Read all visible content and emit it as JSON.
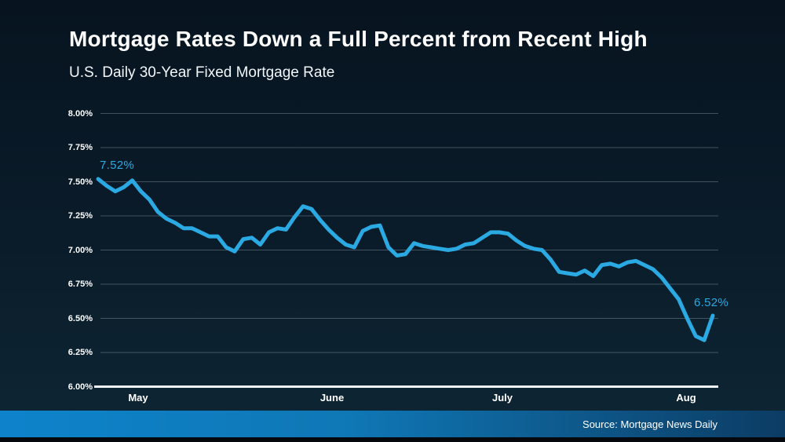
{
  "header": {
    "title": "Mortgage Rates Down a Full Percent from Recent High",
    "subtitle": "U.S. Daily 30-Year Fixed Mortgage Rate"
  },
  "footer": {
    "source": "Source: Mortgage News Daily"
  },
  "colors": {
    "line": "#2aa9e2",
    "annotation": "#2aa9e2",
    "gridline": "rgba(158,173,184,0.38)",
    "baseline": "#eef3f6",
    "footer_left": "#0e83cb",
    "footer_mid": "#0f77b5",
    "footer_right": "#0c3c64"
  },
  "chart_data": {
    "type": "line",
    "title": "Mortgage Rates Down a Full Percent from Recent High",
    "xlabel": "",
    "ylabel": "",
    "unit": "%",
    "ylim": [
      6.0,
      8.0
    ],
    "grid": true,
    "legend": "none",
    "yticks": [
      {
        "label": "8.00%",
        "value": 8.0
      },
      {
        "label": "7.75%",
        "value": 7.75
      },
      {
        "label": "7.50%",
        "value": 7.5
      },
      {
        "label": "7.25%",
        "value": 7.25
      },
      {
        "label": "7.00%",
        "value": 7.0
      },
      {
        "label": "6.75%",
        "value": 6.75
      },
      {
        "label": "6.50%",
        "value": 6.5
      },
      {
        "label": "6.25%",
        "value": 6.25
      },
      {
        "label": "6.00%",
        "value": 6.0
      }
    ],
    "xticks": [
      {
        "label": "May"
      },
      {
        "label": "June"
      },
      {
        "label": "July"
      },
      {
        "label": "Aug"
      }
    ],
    "series": [
      {
        "name": "U.S. Daily 30-Year Fixed Mortgage Rate",
        "values": [
          7.52,
          7.47,
          7.43,
          7.46,
          7.51,
          7.43,
          7.37,
          7.28,
          7.23,
          7.2,
          7.16,
          7.16,
          7.13,
          7.1,
          7.1,
          7.02,
          6.99,
          7.08,
          7.09,
          7.04,
          7.13,
          7.16,
          7.15,
          7.24,
          7.32,
          7.3,
          7.22,
          7.15,
          7.09,
          7.04,
          7.02,
          7.14,
          7.17,
          7.18,
          7.02,
          6.96,
          6.97,
          7.05,
          7.03,
          7.02,
          7.01,
          7.0,
          7.01,
          7.04,
          7.05,
          7.09,
          7.13,
          7.13,
          7.12,
          7.07,
          7.03,
          7.01,
          7.0,
          6.93,
          6.84,
          6.83,
          6.82,
          6.85,
          6.81,
          6.89,
          6.9,
          6.88,
          6.91,
          6.92,
          6.89,
          6.86,
          6.8,
          6.72,
          6.64,
          6.5,
          6.37,
          6.34,
          6.52
        ]
      }
    ],
    "annotations": [
      {
        "text": "7.52%",
        "value": 7.52,
        "position": "start"
      },
      {
        "text": "6.52%",
        "value": 6.52,
        "position": "end"
      }
    ]
  }
}
